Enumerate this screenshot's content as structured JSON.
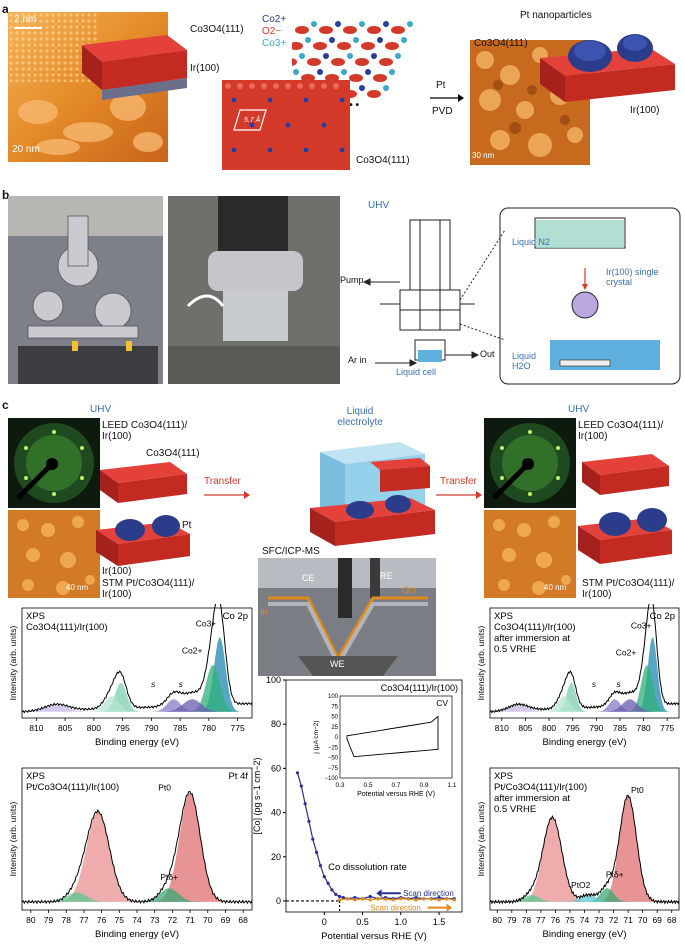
{
  "panels": {
    "a": "a",
    "b": "b",
    "c": "c"
  },
  "a": {
    "stm1_scale1": "2 nm",
    "stm1_scale2": "20 nm",
    "model1_label": "Co3O4(111)",
    "model1_sub": "Ir(100)",
    "ions": [
      "Co2+",
      "O2−",
      "Co3+"
    ],
    "lattice_const": "5.7 Å",
    "lattice_label": "Co3O4(111)",
    "arrow_top": "Pt",
    "arrow_bottom": "PVD",
    "pt_title": "Pt nanoparticles",
    "pt_model_label": "Co3O4(111)",
    "pt_model_sub": "Ir(100)",
    "stm2_scale": "30 nm"
  },
  "b": {
    "uhv": "UHV",
    "pump": "Pump",
    "ar_in": "Ar in",
    "out": "Out",
    "liquid_cell": "Liquid cell",
    "liquid_n2": "Liquid N2",
    "crystal": "Ir(100) single crystal",
    "liquid_h2o": "Liquid H2O"
  },
  "c": {
    "uhv_left": "UHV",
    "leed_left": "LEED Co3O4(111)/ Ir(100)",
    "co3o4_label": "Co3O4(111)",
    "pt_label": "Pt",
    "ir_label": "Ir(100)",
    "stm_left": "STM Pt/Co3O4(111)/ Ir(100)",
    "stm_left_scale": "40 nm",
    "transfer1": "Transfer",
    "transfer2": "Transfer",
    "liquid_electrolyte": "Liquid electrolyte",
    "sfc_title": "SFC/ICP-MS",
    "sfc_labels": {
      "ce": "CE",
      "re": "RE",
      "in": "In",
      "out": "Out",
      "we": "WE"
    },
    "uhv_right": "UHV",
    "leed_right": "LEED Co3O4(111)/ Ir(100)",
    "stm_right": "STM Pt/Co3O4(111)/ Ir(100)",
    "stm_right_scale": "40 nm"
  },
  "xps1": {
    "title": "XPS Co3O4(111)/Ir(100)",
    "tag": "Co 2p",
    "ylabel": "Intensity (arb. units)",
    "xlabel": "Binding energy (eV)",
    "ticks": [
      "810",
      "805",
      "800",
      "795",
      "790",
      "785",
      "780",
      "775"
    ],
    "peaks": [
      "Co3+",
      "Co2+",
      "s",
      "s"
    ]
  },
  "xps2": {
    "title": "XPS Pt/Co3O4(111)/Ir(100)",
    "tag": "Pt 4f",
    "ylabel": "Intensity (arb. units)",
    "xlabel": "Binding energy (eV)",
    "ticks": [
      "80",
      "79",
      "78",
      "77",
      "76",
      "75",
      "74",
      "73",
      "72",
      "71",
      "70",
      "69",
      "68"
    ],
    "peaks": [
      "Pt0",
      "Ptδ+"
    ]
  },
  "xps3": {
    "title": "XPS Co3O4(111)/Ir(100) after immersion at 0.5 VRHE",
    "tag": "Co 2p",
    "ylabel": "Intensity (arb. units)",
    "xlabel": "Binding energy (eV)",
    "ticks": [
      "810",
      "805",
      "800",
      "795",
      "790",
      "785",
      "780",
      "775"
    ],
    "peaks": [
      "Co3+",
      "Co2+",
      "s",
      "s"
    ]
  },
  "xps4": {
    "title": "XPS Pt/Co3O4(111)/Ir(100) after immersion at 0.5 VRHE",
    "ylabel": "Intensity (arb. units)",
    "xlabel": "Binding energy (eV)",
    "ticks": [
      "80",
      "79",
      "78",
      "77",
      "76",
      "75",
      "74",
      "73",
      "72",
      "71",
      "70",
      "69",
      "68"
    ],
    "peaks": [
      "Pt0",
      "Ptδ+",
      "PtO2"
    ]
  },
  "chart_data": [
    {
      "type": "scatter",
      "title": "Co3O4(111)/Ir(100)",
      "xlabel": "Potential versus RHE (V)",
      "ylabel": "[Co] (pg s−1 cm−2)",
      "xlim": [
        -0.5,
        1.8
      ],
      "ylim": [
        -5,
        100
      ],
      "xticks": [
        "0",
        "0.5",
        "1.0",
        "1.5"
      ],
      "yticks": [
        "0",
        "20",
        "40",
        "60",
        "80",
        "100"
      ],
      "annotation": "Co dissolution rate",
      "series": [
        {
          "name": "Scan direction",
          "color": "#2b2f8f",
          "x": [
            -0.35,
            -0.3,
            -0.25,
            -0.2,
            -0.15,
            -0.1,
            -0.05,
            0.0,
            0.05,
            0.1,
            0.15,
            0.2,
            0.25,
            0.3,
            0.4,
            0.5,
            0.6,
            0.7,
            0.8,
            0.9,
            1.0,
            1.1,
            1.2,
            1.3,
            1.4,
            1.5,
            1.6,
            1.7
          ],
          "y": [
            58,
            52,
            44,
            36,
            28,
            22,
            16,
            11,
            8,
            5,
            3,
            2,
            1.5,
            1,
            1.5,
            1,
            2,
            1,
            1.5,
            1,
            1.5,
            1,
            1.5,
            1,
            1,
            1.5,
            1,
            1
          ]
        },
        {
          "name": "Scan direction",
          "color": "#e08a1e",
          "x": [
            0.2,
            0.3,
            0.4,
            0.5,
            0.6,
            0.7,
            0.8,
            0.9,
            1.0,
            1.1,
            1.2,
            1.3,
            1.4,
            1.5,
            1.6,
            1.7
          ],
          "y": [
            0.5,
            1,
            0.5,
            1,
            0.5,
            1,
            0.8,
            0.5,
            1,
            0.8,
            0.5,
            1,
            0.8,
            0.5,
            1,
            0.5
          ]
        }
      ]
    },
    {
      "type": "line",
      "title": "CV",
      "xlabel": "Potential versus RHE (V)",
      "ylabel": "j (μA cm−2)",
      "xlim": [
        0.3,
        1.1
      ],
      "ylim": [
        -100,
        100
      ],
      "xticks": [
        "0.3",
        "0.5",
        "0.7",
        "0.9",
        "1.1"
      ],
      "yticks": [
        "−100",
        "−75",
        "−50",
        "−25",
        "0",
        "25",
        "50",
        "75",
        "100"
      ]
    }
  ]
}
